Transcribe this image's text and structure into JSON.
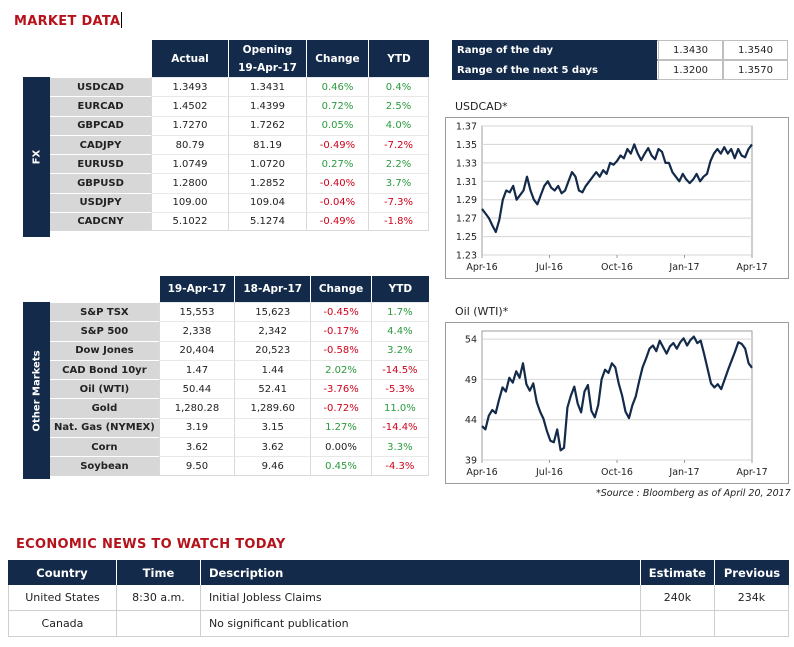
{
  "market_title": "MARKET DATA",
  "fx": {
    "side_label": "FX",
    "headers": [
      "Actual",
      "Opening\n19-Apr-17",
      "Change",
      "YTD"
    ],
    "rows": [
      {
        "label": "USDCAD",
        "actual": "1.3493",
        "opening": "1.3431",
        "change": "0.46%",
        "ytd": "0.4%",
        "change_sign": "pos",
        "ytd_sign": "pos"
      },
      {
        "label": "EURCAD",
        "actual": "1.4502",
        "opening": "1.4399",
        "change": "0.72%",
        "ytd": "2.5%",
        "change_sign": "pos",
        "ytd_sign": "pos"
      },
      {
        "label": "GBPCAD",
        "actual": "1.7270",
        "opening": "1.7262",
        "change": "0.05%",
        "ytd": "4.0%",
        "change_sign": "pos",
        "ytd_sign": "pos"
      },
      {
        "label": "CADJPY",
        "actual": "80.79",
        "opening": "81.19",
        "change": "-0.49%",
        "ytd": "-7.2%",
        "change_sign": "neg",
        "ytd_sign": "neg"
      },
      {
        "label": "EURUSD",
        "actual": "1.0749",
        "opening": "1.0720",
        "change": "0.27%",
        "ytd": "2.2%",
        "change_sign": "pos",
        "ytd_sign": "pos"
      },
      {
        "label": "GBPUSD",
        "actual": "1.2800",
        "opening": "1.2852",
        "change": "-0.40%",
        "ytd": "3.7%",
        "change_sign": "neg",
        "ytd_sign": "pos"
      },
      {
        "label": "USDJPY",
        "actual": "109.00",
        "opening": "109.04",
        "change": "-0.04%",
        "ytd": "-7.3%",
        "change_sign": "neg",
        "ytd_sign": "neg"
      },
      {
        "label": "CADCNY",
        "actual": "5.1022",
        "opening": "5.1274",
        "change": "-0.49%",
        "ytd": "-1.8%",
        "change_sign": "neg",
        "ytd_sign": "neg"
      }
    ]
  },
  "other": {
    "side_label": "Other Markets",
    "headers": [
      "19-Apr-17",
      "18-Apr-17",
      "Change",
      "YTD"
    ],
    "rows": [
      {
        "label": "S&P TSX",
        "actual": "15,553",
        "opening": "15,623",
        "change": "-0.45%",
        "ytd": "1.7%",
        "change_sign": "neg",
        "ytd_sign": "pos"
      },
      {
        "label": "S&P 500",
        "actual": "2,338",
        "opening": "2,342",
        "change": "-0.17%",
        "ytd": "4.4%",
        "change_sign": "neg",
        "ytd_sign": "pos"
      },
      {
        "label": "Dow Jones",
        "actual": "20,404",
        "opening": "20,523",
        "change": "-0.58%",
        "ytd": "3.2%",
        "change_sign": "neg",
        "ytd_sign": "pos"
      },
      {
        "label": "CAD Bond 10yr",
        "actual": "1.47",
        "opening": "1.44",
        "change": "2.02%",
        "ytd": "-14.5%",
        "change_sign": "pos",
        "ytd_sign": "neg"
      },
      {
        "label": "Oil (WTI)",
        "actual": "50.44",
        "opening": "52.41",
        "change": "-3.76%",
        "ytd": "-5.3%",
        "change_sign": "neg",
        "ytd_sign": "neg"
      },
      {
        "label": "Gold",
        "actual": "1,280.28",
        "opening": "1,289.60",
        "change": "-0.72%",
        "ytd": "11.0%",
        "change_sign": "neg",
        "ytd_sign": "pos"
      },
      {
        "label": "Nat. Gas (NYMEX)",
        "actual": "3.19",
        "opening": "3.15",
        "change": "1.27%",
        "ytd": "-14.4%",
        "change_sign": "pos",
        "ytd_sign": "neg"
      },
      {
        "label": "Corn",
        "actual": "3.62",
        "opening": "3.62",
        "change": "0.00%",
        "ytd": "3.3%",
        "change_sign": "zero",
        "ytd_sign": "pos"
      },
      {
        "label": "Soybean",
        "actual": "9.50",
        "opening": "9.46",
        "change": "0.45%",
        "ytd": "-4.3%",
        "change_sign": "pos",
        "ytd_sign": "neg"
      }
    ]
  },
  "range": {
    "rows": [
      {
        "label": "Range of the day",
        "low": "1.3430",
        "high": "1.3540"
      },
      {
        "label": "Range of the next 5 days",
        "low": "1.3200",
        "high": "1.3570"
      }
    ]
  },
  "chart_data": [
    {
      "type": "line",
      "title": "USDCAD*",
      "x_ticks": [
        "Apr-16",
        "Jul-16",
        "Oct-16",
        "Jan-17",
        "Apr-17"
      ],
      "y_ticks": [
        "1.37",
        "1.35",
        "1.33",
        "1.31",
        "1.29",
        "1.27",
        "1.25",
        "1.23"
      ],
      "ylim": [
        1.23,
        1.37
      ],
      "grid": true,
      "color": "#132a4a",
      "values": [
        1.28,
        1.275,
        1.27,
        1.262,
        1.255,
        1.268,
        1.29,
        1.3,
        1.298,
        1.305,
        1.29,
        1.295,
        1.3,
        1.315,
        1.3,
        1.29,
        1.285,
        1.295,
        1.305,
        1.31,
        1.303,
        1.3,
        1.305,
        1.297,
        1.3,
        1.31,
        1.32,
        1.315,
        1.3,
        1.298,
        1.305,
        1.31,
        1.315,
        1.32,
        1.315,
        1.322,
        1.318,
        1.33,
        1.328,
        1.332,
        1.338,
        1.335,
        1.345,
        1.34,
        1.35,
        1.34,
        1.333,
        1.34,
        1.346,
        1.338,
        1.334,
        1.345,
        1.342,
        1.33,
        1.33,
        1.32,
        1.315,
        1.31,
        1.318,
        1.312,
        1.308,
        1.312,
        1.318,
        1.31,
        1.315,
        1.318,
        1.332,
        1.34,
        1.345,
        1.34,
        1.347,
        1.34,
        1.345,
        1.335,
        1.345,
        1.338,
        1.336,
        1.345,
        1.35
      ]
    },
    {
      "type": "line",
      "title": "Oil (WTI)*",
      "x_ticks": [
        "Apr-16",
        "Jul-16",
        "Oct-16",
        "Jan-17",
        "Apr-17"
      ],
      "y_ticks": [
        "54",
        "49",
        "44",
        "39"
      ],
      "ylim": [
        39,
        55
      ],
      "grid": true,
      "color": "#132a4a",
      "values": [
        43.2,
        42.8,
        44.5,
        45.2,
        44.8,
        46.5,
        48,
        47.5,
        49.2,
        48.6,
        50,
        49.2,
        51,
        48.4,
        47.6,
        48.5,
        46.2,
        45,
        44.1,
        42.6,
        41.4,
        41.2,
        42.8,
        40.2,
        40.5,
        45.5,
        47,
        48.1,
        46,
        44.9,
        47.5,
        48.3,
        45.1,
        44.3,
        45.8,
        49,
        50.2,
        49.8,
        51,
        50.5,
        48.5,
        47,
        45,
        44.2,
        45.8,
        46.9,
        48.8,
        50.5,
        51.6,
        52.8,
        53.2,
        52.5,
        53.8,
        53,
        52.2,
        53.1,
        53.5,
        52.8,
        53.6,
        54.1,
        53.2,
        53.9,
        54.3,
        53.5,
        53.8,
        52.1,
        50.3,
        48.5,
        48,
        48.4,
        47.8,
        49,
        50.2,
        51.3,
        52.4,
        53.6,
        53.4,
        52.8,
        51,
        50.44
      ]
    }
  ],
  "source_note": "*Source : Bloomberg as of  April 20, 2017",
  "news": {
    "title": "ECONOMIC NEWS TO WATCH TODAY",
    "headers": {
      "country": "Country",
      "time": "Time",
      "description": "Description",
      "estimate": "Estimate",
      "previous": "Previous"
    },
    "rows": [
      {
        "country": "United States",
        "time": "8:30 a.m.",
        "description": "Initial Jobless Claims",
        "estimate": "240k",
        "previous": "234k"
      },
      {
        "country": "Canada",
        "time": "",
        "description": "No significant publication",
        "estimate": "",
        "previous": ""
      }
    ]
  }
}
